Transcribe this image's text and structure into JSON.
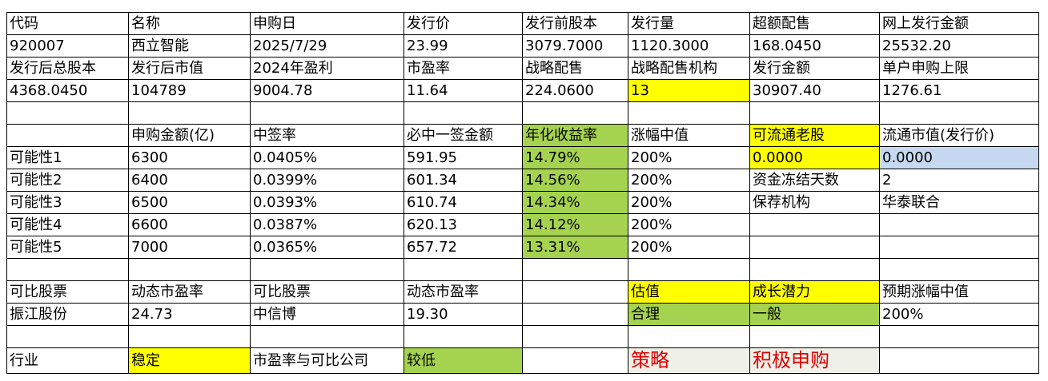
{
  "table": {
    "rows": [
      [
        "代码",
        "名称",
        "申购日",
        "发行价",
        "发行前股本",
        "发行量",
        "超额配售",
        "网上发行金额"
      ],
      [
        "920007",
        "西立智能",
        "2025/7/29",
        "23.99",
        "3079.7000",
        "1120.3000",
        "168.0450",
        "25532.20"
      ],
      [
        "发行后总股本",
        "发行后市值",
        "2024年盈利",
        "市盈率",
        "战略配售",
        "战略配售机构",
        "发行金额",
        "单户申购上限"
      ],
      [
        "4368.0450",
        "104789",
        "9004.78",
        "11.64",
        "224.0600",
        "13",
        "30907.40",
        "1276.61"
      ],
      [],
      [
        null,
        "申购金额(亿)",
        "中签率",
        "必中一签金额",
        "年化收益率",
        "涨幅中值",
        "可流通老股",
        "流通市值(发行价)"
      ],
      [
        "可能性1",
        "6300",
        "0.0405%",
        "591.95",
        "14.79%",
        "200%",
        "0.0000",
        "0.0000"
      ],
      [
        "可能性2",
        "6400",
        "0.0399%",
        "601.34",
        "14.56%",
        "200%",
        "资金冻结天数",
        "2"
      ],
      [
        "可能性3",
        "6500",
        "0.0393%",
        "610.74",
        "14.34%",
        "200%",
        "保荐机构",
        "华泰联合"
      ],
      [
        "可能性4",
        "6600",
        "0.0387%",
        "620.13",
        "14.12%",
        "200%",
        null,
        null
      ],
      [
        "可能性5",
        "7000",
        "0.0365%",
        "657.72",
        "13.31%",
        "200%",
        null,
        null
      ],
      [],
      [
        "可比股票",
        "动态市盈率",
        "可比股票",
        "动态市盈率",
        null,
        "估值",
        "成长潜力",
        "预期涨幅中值"
      ],
      [
        "振江股份",
        "24.73",
        "中信博",
        "19.30",
        null,
        "合理",
        "一般",
        "200%"
      ],
      [],
      [
        "行业",
        "稳定",
        "市盈率与可比公司",
        "较低",
        null,
        "策略",
        "积极申购",
        null
      ]
    ]
  }
}
